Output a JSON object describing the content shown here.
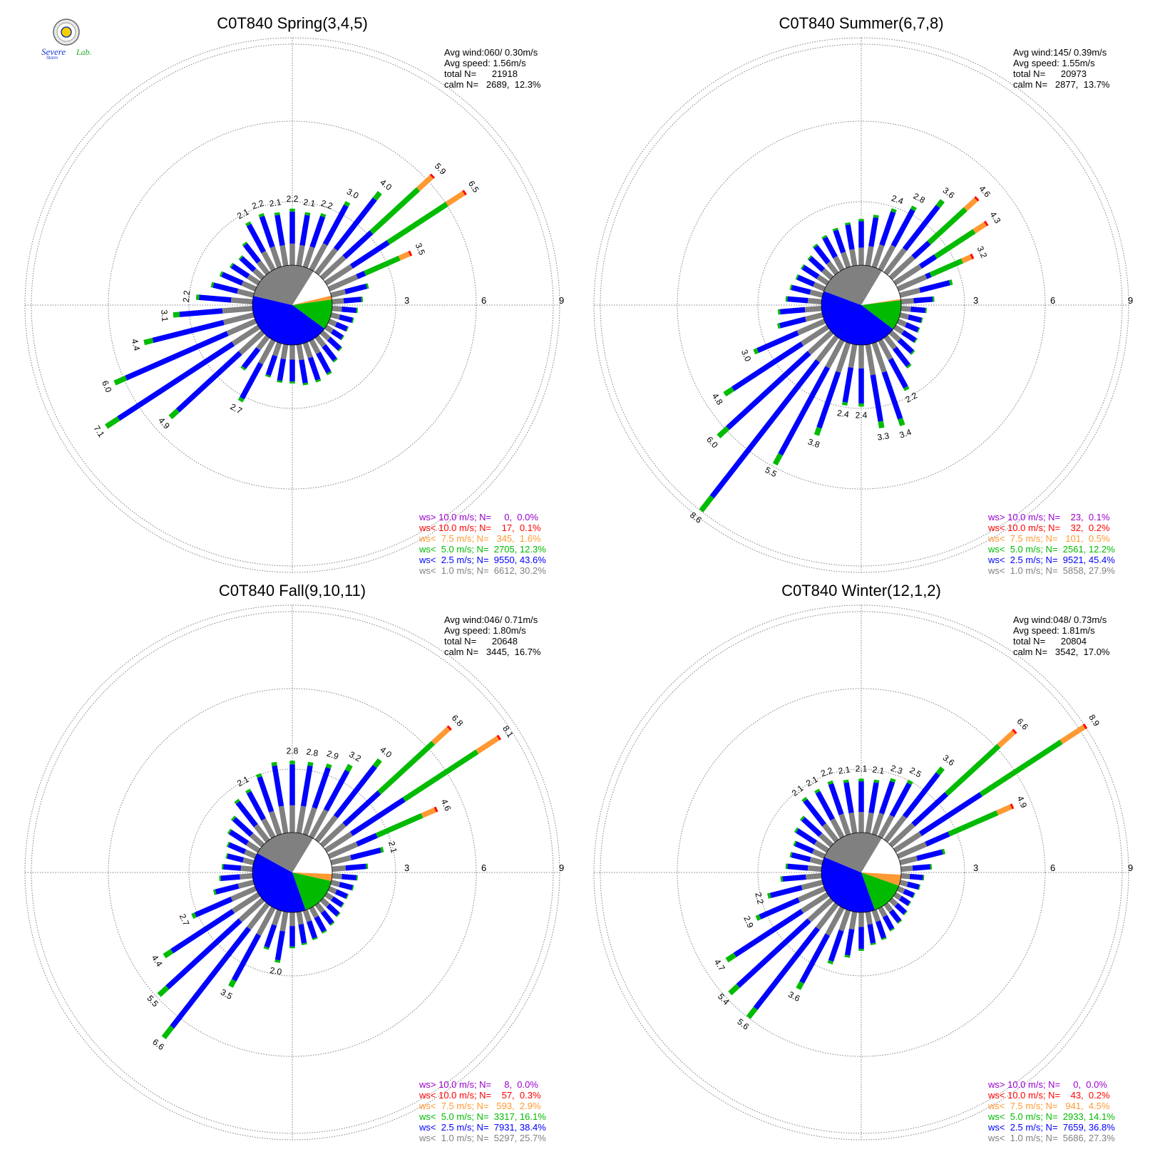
{
  "colors": {
    "gt10": "#9900cc",
    "lt10": "#ff0000",
    "lt75": "#ff9933",
    "lt50": "#00bb00",
    "lt25": "#0000ff",
    "lt10ms": "#808080",
    "calm_ring": "#ffffff",
    "grid": "#808080"
  },
  "logo": {
    "text_a": "Severe",
    "text_b": "Storm",
    "text_c": "Lab."
  },
  "chart_data": [
    {
      "type": "windrose",
      "title": "C0T840 Spring(3,4,5)",
      "info": [
        "Avg wind:060/ 0.30m/s",
        "Avg speed: 1.56m/s",
        "total N=      21918",
        "calm N=   2689,  12.3%"
      ],
      "ring_labels": [
        "3",
        "6",
        "9"
      ],
      "rmax": 9,
      "pie_percent": {
        "lt25": 43.6,
        "lt50": 12.3,
        "lt75": 1.6,
        "lt10": 0.1,
        "lt10ms": 30.2,
        "calm": 12.3
      },
      "sector_totals": [
        2.2,
        2.1,
        2.2,
        3.0,
        4.0,
        5.9,
        6.5,
        3.5,
        1.5,
        1.2,
        1.0,
        0.9,
        0.8,
        0.8,
        1.0,
        1.2,
        1.5,
        1.6,
        1.6,
        1.5,
        1.5,
        1.4,
        2.7,
        1.6,
        4.9,
        7.1,
        6.0,
        4.4,
        3.1,
        2.2,
        1.7,
        1.5,
        1.3,
        1.2,
        1.5,
        2.1,
        2.2,
        2.1
      ],
      "sector_labels": {
        "0": "2.2",
        "1": "2.1",
        "2": "2.2",
        "3": "3.0",
        "4": "4.0",
        "5": "5.9",
        "6": "6.5",
        "7": "3.5",
        "22": "2.7",
        "24": "4.9",
        "25": "7.1",
        "26": "6.0",
        "27": "4.4",
        "28": "3.1",
        "29": "2.2",
        "35": "2.1",
        "36": "2.2",
        "37": "2.1"
      },
      "legend": [
        {
          "key": "gt10",
          "text": "ws> 10.0 m/s; N=     0,  0.0%"
        },
        {
          "key": "lt10",
          "text": "ws< 10.0 m/s; N=    17,  0.1%"
        },
        {
          "key": "lt75",
          "text": "ws<  7.5 m/s; N=   345,  1.6%"
        },
        {
          "key": "lt50",
          "text": "ws<  5.0 m/s; N=  2705, 12.3%"
        },
        {
          "key": "lt25",
          "text": "ws<  2.5 m/s; N=  9550, 43.6%"
        },
        {
          "key": "lt10ms",
          "text": "ws<  1.0 m/s; N=  6612, 30.2%"
        }
      ]
    },
    {
      "type": "windrose",
      "title": "C0T840 Summer(6,7,8)",
      "info": [
        "Avg wind:145/ 0.39m/s",
        "Avg speed: 1.55m/s",
        "total N=      20973",
        "calm N=   2877,  13.7%"
      ],
      "ring_labels": [
        "3",
        "6",
        "9"
      ],
      "rmax": 9,
      "pie_percent": {
        "lt25": 45.4,
        "lt50": 12.2,
        "lt75": 0.5,
        "lt10": 0.2,
        "lt10ms": 27.9,
        "calm": 13.7
      },
      "sector_totals": [
        1.8,
        2.0,
        2.4,
        2.8,
        3.6,
        4.6,
        4.3,
        3.2,
        2.1,
        1.3,
        1.0,
        0.9,
        0.9,
        1.0,
        1.2,
        1.5,
        2.2,
        3.4,
        3.3,
        2.4,
        2.4,
        3.8,
        5.5,
        8.6,
        6.0,
        4.8,
        3.0,
        1.8,
        1.7,
        1.4,
        1.3,
        1.2,
        1.2,
        1.2,
        1.4,
        1.5,
        1.6,
        1.7
      ],
      "sector_labels": {
        "2": "2.4",
        "3": "2.8",
        "4": "3.6",
        "5": "4.6",
        "6": "4.3",
        "7": "3.2",
        "16": "2.2",
        "17": "3.4",
        "18": "3.3",
        "19": "2.4",
        "20": "2.4",
        "21": "3.8",
        "22": "5.5",
        "23": "8.6",
        "24": "6.0",
        "25": "4.8",
        "26": "3.0"
      },
      "legend": [
        {
          "key": "gt10",
          "text": "ws> 10.0 m/s; N=    23,  0.1%"
        },
        {
          "key": "lt10",
          "text": "ws< 10.0 m/s; N=    32,  0.2%"
        },
        {
          "key": "lt75",
          "text": "ws<  7.5 m/s; N=   101,  0.5%"
        },
        {
          "key": "lt50",
          "text": "ws<  5.0 m/s; N=  2561, 12.2%"
        },
        {
          "key": "lt25",
          "text": "ws<  2.5 m/s; N=  9521, 45.4%"
        },
        {
          "key": "lt10ms",
          "text": "ws<  1.0 m/s; N=  5858, 27.9%"
        }
      ]
    },
    {
      "type": "windrose",
      "title": "C0T840 Fall(9,10,11)",
      "info": [
        "Avg wind:046/ 0.71m/s",
        "Avg speed: 1.80m/s",
        "total N=      20648",
        "calm N=   3445,  16.7%"
      ],
      "ring_labels": [
        "3",
        "6",
        "9"
      ],
      "rmax": 9,
      "pie_percent": {
        "lt25": 38.4,
        "lt50": 16.1,
        "lt75": 2.9,
        "lt10": 0.3,
        "lt10ms": 25.7,
        "calm": 16.7
      },
      "sector_totals": [
        2.8,
        2.8,
        2.9,
        3.2,
        4.0,
        6.8,
        8.1,
        4.6,
        2.1,
        1.4,
        1.0,
        0.9,
        0.8,
        0.8,
        0.9,
        1.0,
        1.1,
        1.2,
        1.3,
        1.4,
        2.0,
        1.6,
        3.5,
        6.6,
        5.5,
        4.4,
        2.7,
        1.6,
        1.3,
        1.2,
        1.1,
        1.2,
        1.4,
        1.6,
        2.0,
        2.1,
        2.5,
        2.8
      ],
      "sector_labels": {
        "0": "2.8",
        "1": "2.8",
        "2": "2.9",
        "3": "3.2",
        "4": "4.0",
        "5": "6.8",
        "6": "8.1",
        "7": "4.6",
        "8": "2.1",
        "20": "2.0",
        "22": "3.5",
        "23": "6.6",
        "24": "5.5",
        "25": "4.4",
        "26": "2.7",
        "35": "2.1"
      },
      "legend": [
        {
          "key": "gt10",
          "text": "ws> 10.0 m/s; N=     8,  0.0%"
        },
        {
          "key": "lt10",
          "text": "ws< 10.0 m/s; N=    57,  0.3%"
        },
        {
          "key": "lt75",
          "text": "ws<  7.5 m/s; N=   593,  2.9%"
        },
        {
          "key": "lt50",
          "text": "ws<  5.0 m/s; N=  3317, 16.1%"
        },
        {
          "key": "lt25",
          "text": "ws<  2.5 m/s; N=  7931, 38.4%"
        },
        {
          "key": "lt10ms",
          "text": "ws<  1.0 m/s; N=  5297, 25.7%"
        }
      ]
    },
    {
      "type": "windrose",
      "title": "C0T840 Winter(12,1,2)",
      "info": [
        "Avg wind:048/ 0.73m/s",
        "Avg speed: 1.81m/s",
        "total N=      20804",
        "calm N=   3542,  17.0%"
      ],
      "ring_labels": [
        "3",
        "6",
        "9"
      ],
      "rmax": 9,
      "pie_percent": {
        "lt25": 36.8,
        "lt50": 14.1,
        "lt75": 4.5,
        "lt10": 0.2,
        "lt10ms": 27.3,
        "calm": 17.0
      },
      "sector_totals": [
        2.1,
        2.1,
        2.3,
        2.5,
        3.6,
        6.6,
        8.9,
        4.9,
        1.8,
        1.2,
        0.9,
        0.8,
        0.7,
        0.7,
        0.8,
        0.9,
        1.0,
        1.2,
        1.3,
        1.5,
        1.8,
        2.2,
        3.6,
        5.6,
        5.4,
        4.7,
        2.9,
        2.2,
        1.6,
        1.4,
        1.3,
        1.3,
        1.5,
        1.6,
        2.1,
        2.1,
        2.2,
        2.1
      ],
      "sector_labels": {
        "0": "2.1",
        "1": "2.1",
        "2": "2.3",
        "3": "2.5",
        "4": "3.6",
        "5": "6.6",
        "6": "8.9",
        "7": "4.9",
        "22": "3.6",
        "23": "5.6",
        "24": "5.4",
        "25": "4.7",
        "26": "2.9",
        "27": "2.2",
        "34": "2.1",
        "35": "2.1",
        "36": "2.2",
        "37": "2.1"
      },
      "legend": [
        {
          "key": "gt10",
          "text": "ws> 10.0 m/s; N=     0,  0.0%"
        },
        {
          "key": "lt10",
          "text": "ws< 10.0 m/s; N=    43,  0.2%"
        },
        {
          "key": "lt75",
          "text": "ws<  7.5 m/s; N=   941,  4.5%"
        },
        {
          "key": "lt50",
          "text": "ws<  5.0 m/s; N=  2933, 14.1%"
        },
        {
          "key": "lt25",
          "text": "ws<  2.5 m/s; N=  7659, 36.8%"
        },
        {
          "key": "lt10ms",
          "text": "ws<  1.0 m/s; N=  5686, 27.3%"
        }
      ]
    }
  ]
}
